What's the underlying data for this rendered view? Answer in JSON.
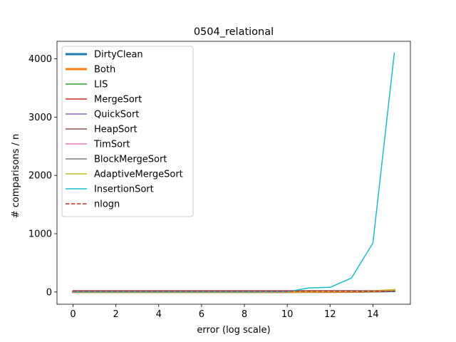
{
  "chart_data": {
    "type": "line",
    "title": "0504_relational",
    "xlabel": "error (log scale)",
    "ylabel": "# comparisons / n",
    "xlim": [
      -0.75,
      15.75
    ],
    "ylim": [
      -210,
      4300
    ],
    "xticks": [
      0,
      2,
      4,
      6,
      8,
      10,
      12,
      14
    ],
    "yticks": [
      0,
      1000,
      2000,
      3000,
      4000
    ],
    "grid": false,
    "legend_position": "upper-left",
    "x": [
      0,
      1,
      2,
      3,
      4,
      5,
      6,
      7,
      8,
      9,
      10,
      11,
      12,
      13,
      14,
      15
    ],
    "series": [
      {
        "name": "DirtyClean",
        "color": "#1f77b4",
        "width": 3,
        "dash": "solid",
        "values": [
          1,
          1,
          1,
          1,
          1,
          1,
          1,
          1,
          1,
          1,
          1,
          2,
          3,
          4,
          8,
          16
        ]
      },
      {
        "name": "Both",
        "color": "#ff7f0e",
        "width": 3,
        "dash": "solid",
        "values": [
          1,
          1,
          1,
          1,
          1,
          1,
          1,
          1,
          1,
          1,
          1,
          2,
          3,
          5,
          12,
          32
        ]
      },
      {
        "name": "LIS",
        "color": "#2ca02c",
        "width": 1.5,
        "dash": "solid",
        "values": [
          1,
          1,
          1,
          1,
          1,
          1,
          1,
          1,
          1,
          1,
          1,
          2,
          3,
          5,
          10,
          20
        ]
      },
      {
        "name": "MergeSort",
        "color": "#d62728",
        "width": 1.5,
        "dash": "solid",
        "values": [
          17,
          17,
          17,
          17,
          17,
          17,
          17,
          17,
          17,
          17,
          17,
          17,
          17,
          18,
          18,
          19
        ]
      },
      {
        "name": "QuickSort",
        "color": "#9467bd",
        "width": 1.5,
        "dash": "solid",
        "values": [
          22,
          22,
          22,
          22,
          22,
          22,
          22,
          22,
          22,
          22,
          22,
          22,
          22,
          22,
          23,
          23
        ]
      },
      {
        "name": "HeapSort",
        "color": "#8c564b",
        "width": 1.5,
        "dash": "solid",
        "values": [
          20,
          20,
          20,
          20,
          20,
          20,
          20,
          20,
          20,
          20,
          20,
          20,
          20,
          20,
          20,
          20
        ]
      },
      {
        "name": "TimSort",
        "color": "#e377c2",
        "width": 1.5,
        "dash": "solid",
        "values": [
          2,
          2,
          2,
          2,
          2,
          2,
          2,
          2,
          2,
          2,
          3,
          4,
          6,
          9,
          14,
          20
        ]
      },
      {
        "name": "BlockMergeSort",
        "color": "#7f7f7f",
        "width": 1.5,
        "dash": "solid",
        "values": [
          12,
          12,
          12,
          12,
          12,
          12,
          12,
          12,
          12,
          12,
          12,
          13,
          14,
          15,
          16,
          18
        ]
      },
      {
        "name": "AdaptiveMergeSort",
        "color": "#bcbd22",
        "width": 1.5,
        "dash": "solid",
        "values": [
          2,
          2,
          2,
          2,
          2,
          2,
          2,
          2,
          2,
          2,
          3,
          5,
          8,
          12,
          18,
          36
        ]
      },
      {
        "name": "InsertionSort",
        "color": "#17becf",
        "width": 1.5,
        "dash": "solid",
        "values": [
          1,
          1,
          1,
          1,
          1,
          1,
          1,
          1,
          1,
          2,
          4,
          70,
          80,
          240,
          840,
          4100
        ]
      },
      {
        "name": "nlogn",
        "color": "#d62728",
        "width": 1.5,
        "dash": "dashed",
        "values": [
          15,
          15,
          15,
          15,
          15,
          15,
          15,
          15,
          15,
          15,
          15,
          15,
          15,
          15,
          15,
          15
        ]
      }
    ]
  }
}
